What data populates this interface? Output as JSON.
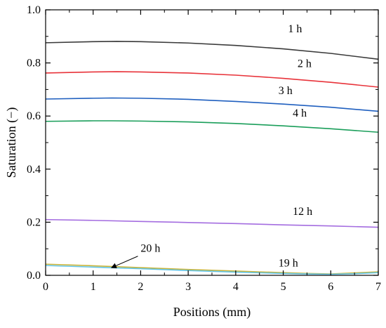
{
  "chart_data": {
    "type": "line",
    "title": "",
    "xlabel": "Positions (mm)",
    "ylabel": "Saturation (−)",
    "xlim": [
      0,
      7
    ],
    "ylim": [
      0,
      1.0
    ],
    "xticks": [
      0,
      1,
      2,
      3,
      4,
      5,
      6,
      7
    ],
    "yticks": [
      0.0,
      0.2,
      0.4,
      0.6,
      0.8,
      1.0
    ],
    "ytick_labels": [
      "0.0",
      "0.2",
      "0.4",
      "0.6",
      "0.8",
      "1.0"
    ],
    "xtick_labels": [
      "0",
      "1",
      "2",
      "3",
      "4",
      "5",
      "6",
      "7"
    ],
    "grid": false,
    "legend": "none",
    "series": [
      {
        "name": "1 h",
        "color": "#3a3a3a",
        "x": [
          0,
          1,
          1.5,
          2,
          3,
          4,
          5,
          6,
          7
        ],
        "y": [
          0.876,
          0.88,
          0.881,
          0.88,
          0.875,
          0.866,
          0.853,
          0.836,
          0.814
        ]
      },
      {
        "name": "2 h",
        "color": "#e8333a",
        "x": [
          0,
          1,
          1.5,
          2,
          3,
          4,
          5,
          6,
          7
        ],
        "y": [
          0.762,
          0.766,
          0.767,
          0.766,
          0.762,
          0.754,
          0.742,
          0.727,
          0.709
        ]
      },
      {
        "name": "3 h",
        "color": "#1f5fbf",
        "x": [
          0,
          1,
          1.4,
          2,
          3,
          4,
          5,
          6,
          7
        ],
        "y": [
          0.664,
          0.667,
          0.668,
          0.667,
          0.663,
          0.655,
          0.645,
          0.633,
          0.618
        ]
      },
      {
        "name": "4 h",
        "color": "#1a9e5a",
        "x": [
          0,
          1,
          1.4,
          2,
          3,
          4,
          5,
          6,
          7
        ],
        "y": [
          0.58,
          0.582,
          0.582,
          0.581,
          0.578,
          0.572,
          0.563,
          0.552,
          0.539
        ]
      },
      {
        "name": "12 h",
        "color": "#a46de0",
        "x": [
          0,
          1,
          2,
          3,
          4,
          5,
          6,
          7
        ],
        "y": [
          0.21,
          0.207,
          0.203,
          0.199,
          0.195,
          0.19,
          0.186,
          0.181
        ]
      },
      {
        "name": "19 h",
        "color": "#c8b43a",
        "x": [
          0,
          1,
          2,
          3,
          4,
          5,
          5.5,
          6,
          6.5,
          7
        ],
        "y": [
          0.042,
          0.036,
          0.029,
          0.022,
          0.016,
          0.01,
          0.007,
          0.005,
          0.009,
          0.013
        ]
      },
      {
        "name": "20 h",
        "color": "#63c5e8",
        "x": [
          0,
          1,
          2,
          3,
          4,
          5,
          5.5,
          6,
          6.5,
          7
        ],
        "y": [
          0.037,
          0.031,
          0.025,
          0.018,
          0.012,
          0.007,
          0.005,
          0.004,
          0.006,
          0.01
        ]
      }
    ],
    "annotations": [
      {
        "text": "1 h",
        "series": "1 h",
        "x": 5.1,
        "y": 0.915
      },
      {
        "text": "2 h",
        "series": "2 h",
        "x": 5.3,
        "y": 0.785
      },
      {
        "text": "3 h",
        "series": "3 h",
        "x": 4.9,
        "y": 0.683
      },
      {
        "text": "4 h",
        "series": "4 h",
        "x": 5.2,
        "y": 0.598
      },
      {
        "text": "12 h",
        "series": "12 h",
        "x": 5.2,
        "y": 0.228
      },
      {
        "text": "19 h",
        "series": "19 h",
        "x": 4.9,
        "y": 0.033
      },
      {
        "text": "20 h",
        "series": "20 h",
        "x": 2.0,
        "y": 0.088,
        "arrow_to": [
          1.4,
          0.03
        ]
      }
    ]
  }
}
